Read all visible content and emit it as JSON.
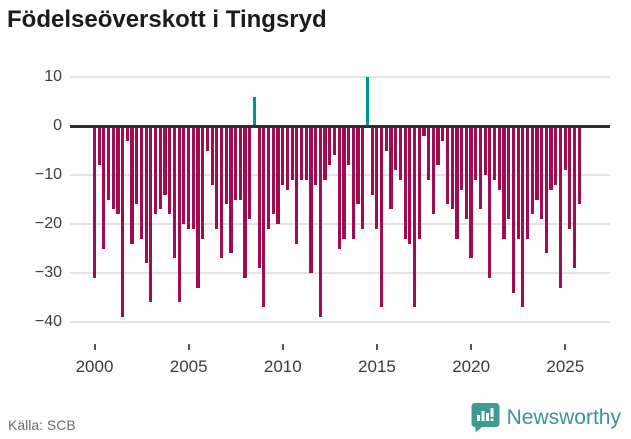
{
  "title": "Födelseöverskott i Tingsryd",
  "source": "Källa: SCB",
  "brand": {
    "name": "Newsworthy"
  },
  "colors": {
    "negative_bar": "#a00d4f",
    "positive_bar": "#00968f",
    "zero_line": "#2f2f2f",
    "grid": "#e4e4e4",
    "title_text": "#1b1b1b",
    "axis_text": "#3c3c3c",
    "source_text": "#6b6b6b",
    "brand_teal": "#3d9b94"
  },
  "chart_data": {
    "type": "bar",
    "title": "Födelseöverskott i Tingsryd",
    "xlabel": "",
    "ylabel": "",
    "frequency": "quarterly",
    "x_start_year": 2000,
    "bars_per_year": 4,
    "x_ticks": [
      2000,
      2005,
      2010,
      2015,
      2020,
      2025
    ],
    "y_ticks": [
      10,
      0,
      -10,
      -20,
      -30,
      -40
    ],
    "ylim": [
      -44,
      13
    ],
    "grid": "horizontal",
    "legend": "none",
    "series": [
      {
        "name": "Födelseöverskott",
        "values": [
          -31,
          -8,
          -25,
          -15,
          -17,
          -18,
          -39,
          -3,
          -24,
          -16,
          -23,
          -28,
          -36,
          -18,
          -17,
          -14,
          -18,
          -27,
          -36,
          -20,
          -21,
          -21,
          -33,
          -23,
          -5,
          -12,
          -21,
          -27,
          -16,
          -26,
          -15,
          -15,
          -31,
          -19,
          6,
          -29,
          -37,
          -21,
          -18,
          -20,
          -12,
          -13,
          -11,
          -24,
          -11,
          -11,
          -30,
          -12,
          -39,
          -11,
          -8,
          -6,
          -25,
          -23,
          -8,
          -23,
          -16,
          -21,
          10,
          -14,
          -21,
          -37,
          -5,
          -17,
          -9,
          -11,
          -23,
          -24,
          -37,
          -23,
          -2,
          -11,
          -18,
          -8,
          -3,
          -16,
          -17,
          -23,
          -13,
          -19,
          -27,
          -11,
          -17,
          -10,
          -31,
          -11,
          -13,
          -23,
          -19,
          -34,
          -23,
          -37,
          -23,
          -18,
          -15,
          -19,
          -26,
          -13,
          -12,
          -33,
          -9,
          -21,
          -29,
          -16
        ]
      }
    ]
  }
}
